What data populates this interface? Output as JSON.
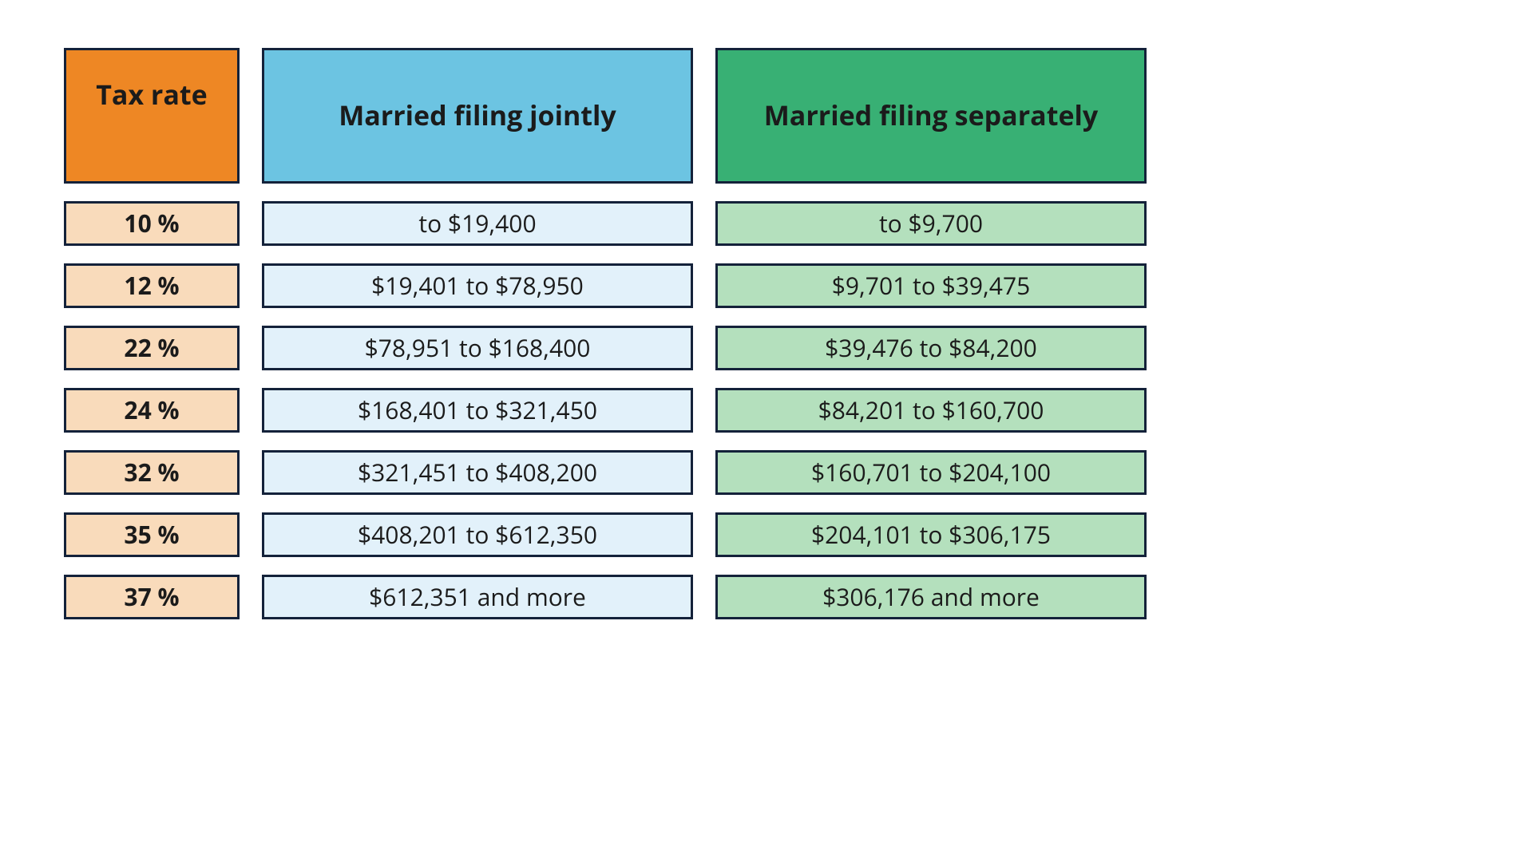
{
  "columns": {
    "rate": {
      "label": "Tax rate",
      "header_bg": "#ee8724",
      "body_bg": "#f9dbbb"
    },
    "jointly": {
      "label": "Married filing jointly",
      "header_bg": "#6cc4e2",
      "body_bg": "#e2f1fa"
    },
    "separate": {
      "label": "Married filing separately",
      "header_bg": "#38b074",
      "body_bg": "#b4e0bd"
    }
  },
  "border_color": "#14223a",
  "rows": [
    {
      "rate": "10 %",
      "jointly": "to $19,400",
      "separate": "to $9,700"
    },
    {
      "rate": "12 %",
      "jointly": "$19,401 to $78,950",
      "separate": "$9,701 to $39,475"
    },
    {
      "rate": "22 %",
      "jointly": "$78,951 to $168,400",
      "separate": "$39,476 to $84,200"
    },
    {
      "rate": "24 %",
      "jointly": "$168,401 to $321,450",
      "separate": "$84,201 to $160,700"
    },
    {
      "rate": "32 %",
      "jointly": "$321,451 to $408,200",
      "separate": "$160,701 to $204,100"
    },
    {
      "rate": "35 %",
      "jointly": "$408,201 to $612,350",
      "separate": "$204,101 to $306,175"
    },
    {
      "rate": "37 %",
      "jointly": "$612,351 and more",
      "separate": "$306,176 and more"
    }
  ]
}
